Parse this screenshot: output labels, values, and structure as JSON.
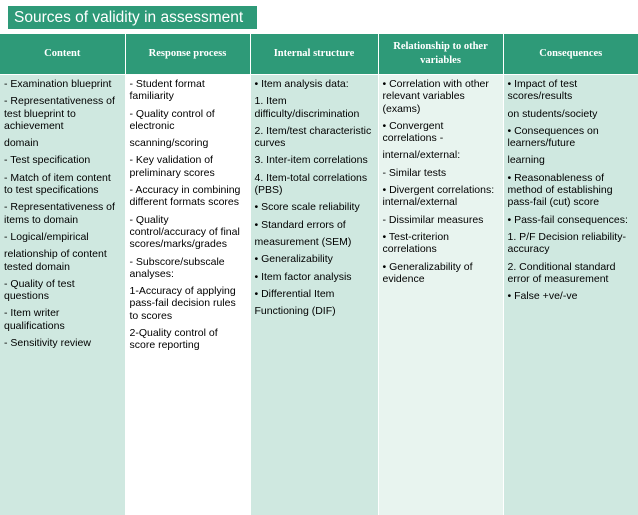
{
  "title": "Sources of validity in assessment",
  "columns": [
    {
      "header": "Content",
      "lines": [
        "- Examination blueprint",
        "- Representativeness of test blueprint to achievement",
        "domain",
        "- Test specification",
        "- Match of item content to test specifications",
        "- Representativeness of items to domain",
        "- Logical/empirical",
        "relationship of content tested domain",
        "- Quality of test questions",
        "- Item writer qualifications",
        "- Sensitivity review"
      ]
    },
    {
      "header": "Response process",
      "lines": [
        "- Student format familiarity",
        "- Quality control of electronic",
        "scanning/scoring",
        "- Key validation of preliminary scores",
        "- Accuracy in combining different formats scores",
        "- Quality control/accuracy of final scores/marks/grades",
        "- Subscore/subscale analyses:",
        "1-Accuracy of applying pass-fail decision rules to scores",
        "2-Quality control of score reporting"
      ]
    },
    {
      "header": "Internal structure",
      "lines": [
        "• Item analysis data:",
        "1. Item difficulty/discrimination",
        "2. Item/test characteristic curves",
        "3. Inter-item correlations",
        "4. Item-total correlations (PBS)",
        "• Score scale reliability",
        "• Standard errors of",
        "measurement (SEM)",
        "• Generalizability",
        "• Item factor analysis",
        "• Differential Item",
        "Functioning (DIF)"
      ]
    },
    {
      "header": "Relationship to other variables",
      "lines": [
        "• Correlation with other relevant variables (exams)",
        "• Convergent correlations -",
        "internal/external:",
        "  - Similar tests",
        "• Divergent correlations: internal/external",
        " - Dissimilar measures",
        "• Test-criterion correlations",
        "• Generalizability of evidence"
      ]
    },
    {
      "header": "Consequences",
      "lines": [
        "• Impact of test scores/results",
        "on students/society",
        "• Consequences on learners/future",
        "learning",
        "• Reasonableness of method of establishing pass-fail (cut) score",
        "• Pass-fail consequences:",
        "1. P/F Decision reliability-accuracy",
        "2. Conditional standard error of measurement",
        "• False +ve/-ve"
      ]
    }
  ]
}
